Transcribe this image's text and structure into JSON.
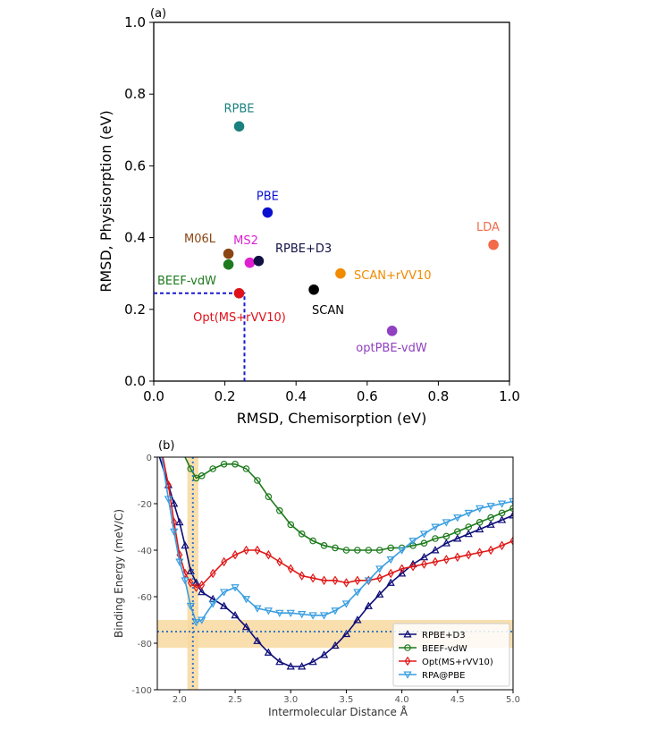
{
  "chart_data": [
    {
      "panel": "(a)",
      "type": "scatter",
      "xlabel": "RMSD, Chemisorption (eV)",
      "ylabel": "RMSD, Physisorption (eV)",
      "xlim": [
        0.0,
        1.0
      ],
      "ylim": [
        0.0,
        1.0
      ],
      "xticks": [
        "0.0",
        "0.2",
        "0.4",
        "0.6",
        "0.8",
        "1.0"
      ],
      "yticks": [
        "0.0",
        "0.2",
        "0.4",
        "0.6",
        "0.8",
        "1.0"
      ],
      "grid": false,
      "points": [
        {
          "label": "RPBE",
          "x": 0.24,
          "y": 0.71,
          "color": "#1a7f7f"
        },
        {
          "label": "PBE",
          "x": 0.32,
          "y": 0.47,
          "color": "#0a10d0"
        },
        {
          "label": "LDA",
          "x": 0.955,
          "y": 0.38,
          "color": "#f26b4a"
        },
        {
          "label": "M06L",
          "x": 0.21,
          "y": 0.355,
          "color": "#8b4513"
        },
        {
          "label": "MS2",
          "x": 0.27,
          "y": 0.33,
          "color": "#e020d0"
        },
        {
          "label": "RPBE+D3",
          "x": 0.295,
          "y": 0.335,
          "color": "#111144"
        },
        {
          "label": "BEEF-vdW",
          "x": 0.21,
          "y": 0.325,
          "color": "#1e7a1e"
        },
        {
          "label": "SCAN+rVV10",
          "x": 0.525,
          "y": 0.3,
          "color": "#f08a00"
        },
        {
          "label": "Opt(MS+rVV10)",
          "x": 0.24,
          "y": 0.245,
          "color": "#e0101a"
        },
        {
          "label": "SCAN",
          "x": 0.45,
          "y": 0.255,
          "color": "#000000"
        },
        {
          "label": "optPBE-vdW",
          "x": 0.67,
          "y": 0.14,
          "color": "#9040c0"
        }
      ],
      "annotations": [
        {
          "type": "dotted-line",
          "color": "#1a1ad0",
          "x": 0.255,
          "y": 0.245
        }
      ]
    },
    {
      "panel": "(b)",
      "type": "line",
      "xlabel": "Intermolecular Distance Å",
      "ylabel": "Binding Energy (meV/C)",
      "xlim": [
        1.8,
        5.0
      ],
      "ylim": [
        -100,
        0
      ],
      "xticks": [
        "2.0",
        "2.5",
        "3.0",
        "3.5",
        "4.0",
        "4.5",
        "5.0"
      ],
      "yticks": [
        "0",
        "-20",
        "-40",
        "-60",
        "-80",
        "-100"
      ],
      "legend_placement": "bottom-right",
      "bands": [
        {
          "orient": "vertical",
          "x0": 2.07,
          "x1": 2.17,
          "color": "#f8d9a0"
        },
        {
          "orient": "horizontal",
          "y0": -70,
          "y1": -82,
          "color": "#f8d9a0"
        }
      ],
      "reference_lines": [
        {
          "orient": "vertical",
          "x": 2.12,
          "color": "#3a78c8"
        },
        {
          "orient": "horizontal",
          "y": -75,
          "color": "#3a78c8"
        }
      ],
      "series": [
        {
          "name": "RPBE+D3",
          "color": "#0c0c78",
          "marker": "triangle-up",
          "every": 5,
          "x": [
            1.82,
            1.9,
            1.95,
            2.0,
            2.05,
            2.1,
            2.15,
            2.2,
            2.3,
            2.4,
            2.5,
            2.6,
            2.7,
            2.8,
            2.9,
            3.0,
            3.1,
            3.2,
            3.3,
            3.4,
            3.5,
            3.6,
            3.7,
            3.8,
            3.9,
            4.0,
            4.1,
            4.2,
            4.3,
            4.4,
            4.5,
            4.6,
            4.7,
            4.8,
            4.9,
            5.0
          ],
          "y": [
            0,
            -12,
            -20,
            -28,
            -38,
            -49,
            -54,
            -58,
            -61,
            -64,
            -68,
            -73,
            -79,
            -84,
            -88,
            -90,
            -90,
            -88,
            -85,
            -81,
            -76,
            -70,
            -64,
            -59,
            -54,
            -50,
            -46,
            -43,
            -40,
            -37,
            -35,
            -33,
            -31,
            -29,
            -27,
            -25
          ]
        },
        {
          "name": "BEEF-vdW",
          "color": "#1c7a1c",
          "marker": "circle",
          "every": 1,
          "x": [
            2.05,
            2.1,
            2.15,
            2.2,
            2.3,
            2.4,
            2.5,
            2.6,
            2.7,
            2.8,
            2.9,
            3.0,
            3.1,
            3.2,
            3.3,
            3.4,
            3.5,
            3.6,
            3.7,
            3.8,
            3.9,
            4.0,
            4.1,
            4.2,
            4.3,
            4.4,
            4.5,
            4.6,
            4.7,
            4.8,
            4.9,
            5.0
          ],
          "y": [
            0,
            -5,
            -9,
            -8,
            -5,
            -3,
            -3,
            -5,
            -10,
            -17,
            -23,
            -29,
            -33,
            -36,
            -38,
            -39,
            -40,
            -40,
            -40,
            -40,
            -39,
            -39,
            -38,
            -37,
            -35,
            -34,
            -32,
            -30,
            -28,
            -26,
            -24,
            -22
          ]
        },
        {
          "name": "Opt(MS+rVV10)",
          "color": "#e01818",
          "marker": "diamond",
          "every": 2,
          "x": [
            1.85,
            1.9,
            1.95,
            2.0,
            2.05,
            2.1,
            2.15,
            2.2,
            2.3,
            2.4,
            2.5,
            2.6,
            2.7,
            2.8,
            2.9,
            3.0,
            3.1,
            3.2,
            3.3,
            3.4,
            3.5,
            3.6,
            3.7,
            3.8,
            3.9,
            4.0,
            4.1,
            4.2,
            4.3,
            4.4,
            4.5,
            4.6,
            4.7,
            4.8,
            4.9,
            5.0
          ],
          "y": [
            0,
            -12,
            -28,
            -42,
            -50,
            -54,
            -56,
            -55,
            -50,
            -45,
            -42,
            -40,
            -40,
            -42,
            -45,
            -48,
            -51,
            -52,
            -53,
            -53,
            -54,
            -53,
            -53,
            -52,
            -50,
            -48,
            -47,
            -46,
            -45,
            -44,
            -43,
            -42,
            -41,
            -40,
            -38,
            -36
          ]
        },
        {
          "name": "RPA@PBE",
          "color": "#3a9ee0",
          "marker": "triangle-down",
          "every": 3,
          "x": [
            1.84,
            1.9,
            1.95,
            2.0,
            2.05,
            2.1,
            2.15,
            2.2,
            2.3,
            2.4,
            2.5,
            2.6,
            2.7,
            2.8,
            2.9,
            3.0,
            3.1,
            3.2,
            3.3,
            3.4,
            3.5,
            3.6,
            3.7,
            3.8,
            3.9,
            4.0,
            4.1,
            4.2,
            4.3,
            4.4,
            4.5,
            4.6,
            4.7,
            4.8,
            4.9,
            5.0
          ],
          "y": [
            0,
            -18,
            -32,
            -45,
            -53,
            -64,
            -71,
            -70,
            -63,
            -58,
            -56,
            -61,
            -65,
            -66,
            -67,
            -67,
            -67.5,
            -68,
            -68,
            -66,
            -63,
            -58,
            -53,
            -48,
            -44,
            -40,
            -36,
            -33,
            -30,
            -28,
            -26,
            -24,
            -22,
            -21,
            -20,
            -19
          ]
        }
      ]
    }
  ]
}
